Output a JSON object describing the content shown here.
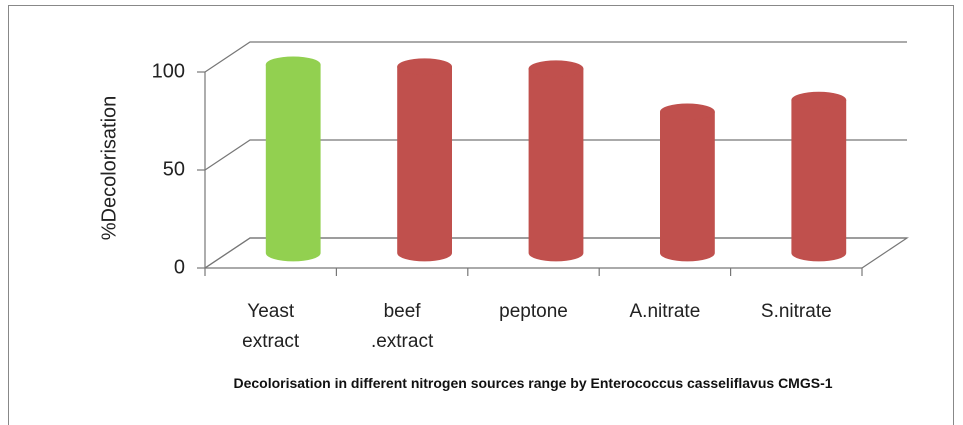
{
  "chart_data": {
    "type": "bar3d",
    "title": "Decolorisation in different  nitrogen sources range by Enterococcus casseliflavus CMGS-1",
    "y_label": "%Decolorisation",
    "categories": [
      "Yeast extract",
      "beef .extract",
      "peptone",
      "A.nitrate",
      "S.nitrate"
    ],
    "values": [
      96,
      95,
      94,
      72,
      78
    ],
    "colors": [
      "#92d050",
      "#c0504d",
      "#c0504d",
      "#c0504d",
      "#c0504d"
    ],
    "ylim": [
      0,
      100
    ],
    "yticks": [
      0,
      50,
      100
    ],
    "grid": true
  }
}
